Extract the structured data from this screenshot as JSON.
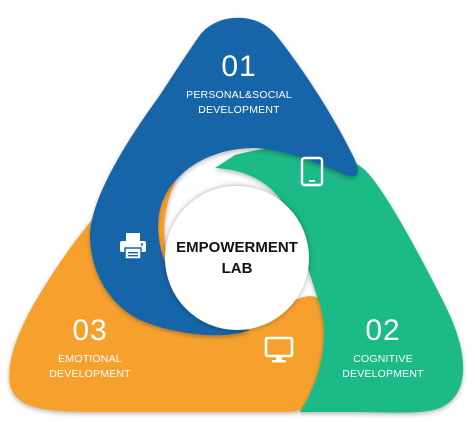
{
  "center": {
    "line1": "EMPOWERMENT",
    "line2": "LAB"
  },
  "segments": [
    {
      "number": "01",
      "line1": "PERSONAL&SOCIAL",
      "line2": "DEVELOPMENT",
      "color": "#1565a8",
      "icon": "tablet-icon"
    },
    {
      "number": "02",
      "line1": "COGNITIVE",
      "line2": "DEVELOPMENT",
      "color": "#1fba86",
      "icon": "monitor-icon"
    },
    {
      "number": "03",
      "line1": "EMOTIONAL",
      "line2": "DEVELOPMENT",
      "color": "#f6a12e",
      "icon": "printer-icon"
    }
  ]
}
